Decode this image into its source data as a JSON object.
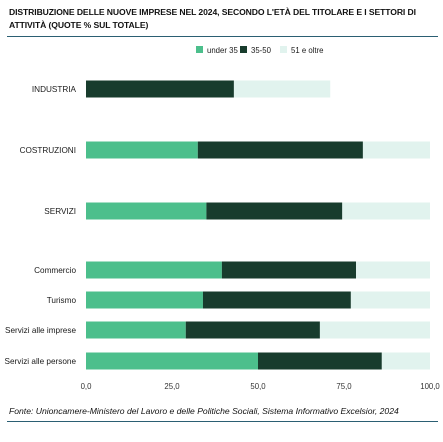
{
  "chart_data": {
    "type": "bar",
    "orientation": "horizontal",
    "stacked": true,
    "title": "DISTRIBUZIONE DELLE NUOVE IMPRESE NEL 2024, SECONDO L'ETÀ DEL TITOLARE E I SETTORI DI ATTIVITÀ (QUOTE % SUL TOTALE)",
    "categories": [
      "INDUSTRIA",
      "COSTRUZIONI",
      "SERVIZI",
      "Commercio",
      "Turismo",
      "Servizi alle imprese",
      "Servizi alle persone"
    ],
    "series": [
      {
        "name": "under 35",
        "values": [
          0.0,
          32.5,
          35.0,
          39.5,
          34.0,
          29.0,
          50.0
        ]
      },
      {
        "name": "35-50",
        "values": [
          43.0,
          48.0,
          39.5,
          39.0,
          43.0,
          39.0,
          36.0
        ]
      },
      {
        "name": "51 e oltre",
        "values": [
          28.0,
          19.5,
          25.5,
          21.5,
          23.0,
          32.0,
          14.0
        ]
      }
    ],
    "xlim": [
      0,
      100
    ],
    "xticks": [
      "0,0",
      "25,0",
      "50,0",
      "75,0",
      "100,0"
    ],
    "legend_position": "top-right",
    "grid": false,
    "colors": [
      "#4cbf8c",
      "#183c2d",
      "#e1f3ee"
    ],
    "source": "Fonte: Unioncamere-Ministero del Lavoro e delle Politiche Sociali, Sistema Informativo Excelsior, 2024"
  }
}
